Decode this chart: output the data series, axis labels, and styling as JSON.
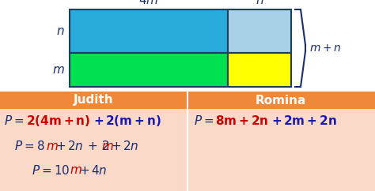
{
  "bg_color": "#ffffff",
  "table_header_color": "#F0883A",
  "table_body_color": "#FAD9C8",
  "rect_blue": "#29ABDC",
  "rect_light_blue": "#A8D0E6",
  "rect_green": "#00E050",
  "rect_yellow": "#FFFF00",
  "rect_border": "#1a4060",
  "judith_header": "Judith",
  "romina_header": "Romina",
  "dark_blue": "#1a2e6e",
  "red_color": "#cc0000",
  "blue_color": "#1a1aaa"
}
